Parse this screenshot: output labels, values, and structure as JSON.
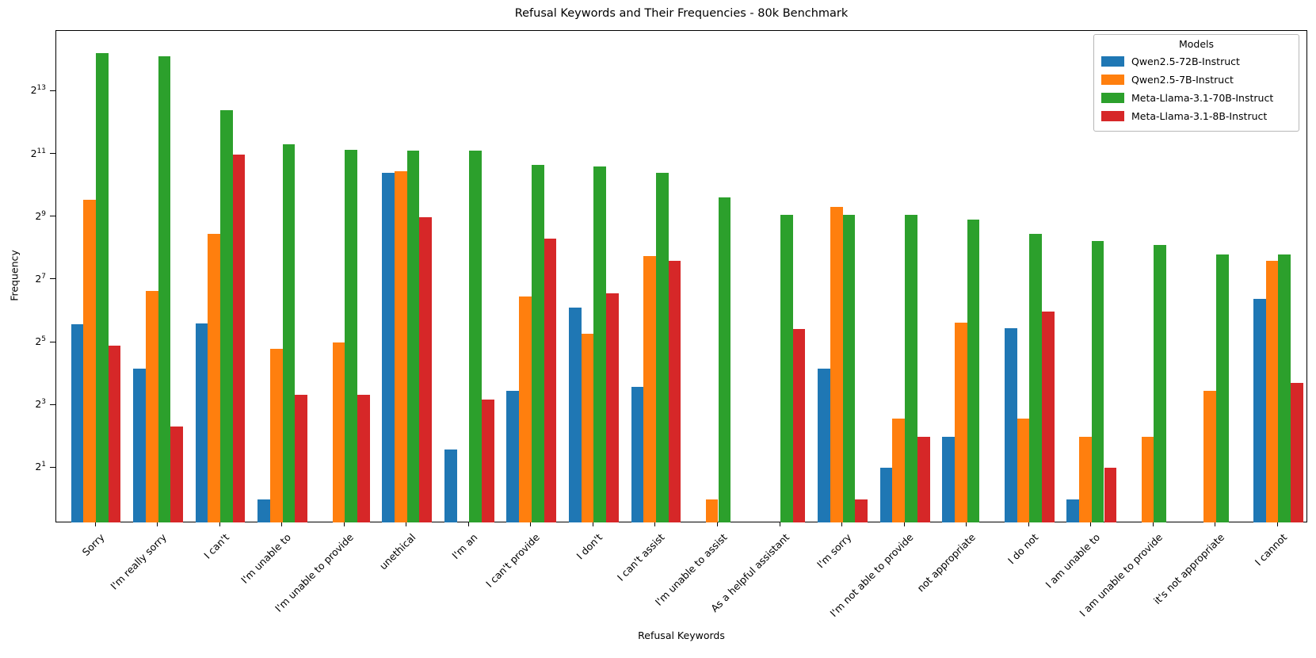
{
  "chart_data": {
    "type": "bar",
    "title": "Refusal Keywords and Their Frequencies - 80k Benchmark",
    "xlabel": "Refusal Keywords",
    "ylabel": "Frequency",
    "yscale": "log2",
    "ytick_powers": [
      1,
      3,
      5,
      7,
      9,
      11,
      13
    ],
    "ytick_labels": [
      "2^1",
      "2^3",
      "2^5",
      "2^7",
      "2^9",
      "2^11",
      "2^13"
    ],
    "ylim": [
      0.585,
      31500
    ],
    "grid": false,
    "legend": {
      "title": "Models",
      "position": "upper right"
    },
    "categories": [
      "Sorry",
      "I'm really sorry",
      "I can't",
      "I'm unable to",
      "I'm unable to provide",
      "unethical",
      "I'm an",
      "I can't provide",
      "I don't",
      "I can't assist",
      "I'm unable to assist",
      "As a helpful assistant",
      "I'm sorry",
      "I'm not able to provide",
      "not appropriate",
      "I do not",
      "I am unable to",
      "I am unable to provide",
      "it's not appropriate",
      "I cannot"
    ],
    "series": [
      {
        "name": "Qwen2.5-72B-Instruct",
        "color": "#1f77b4",
        "values": [
          48,
          18,
          49,
          1,
          0,
          1360,
          3,
          11,
          69,
          12,
          0,
          0,
          18,
          2,
          4,
          44,
          1,
          0,
          0,
          84
        ]
      },
      {
        "name": "Qwen2.5-7B-Instruct",
        "color": "#ff7f0e",
        "values": [
          755,
          100,
          350,
          28,
          32,
          1400,
          0,
          89,
          39,
          214,
          1,
          0,
          635,
          6,
          50,
          6,
          4,
          4,
          11,
          193
        ]
      },
      {
        "name": "Meta-Llama-3.1-70B-Instruct",
        "color": "#2ca02c",
        "values": [
          19000,
          17700,
          5450,
          2570,
          2260,
          2230,
          2215,
          1630,
          1550,
          1360,
          790,
          540,
          540,
          540,
          485,
          350,
          300,
          275,
          225,
          224
        ]
      },
      {
        "name": "Meta-Llama-3.1-8B-Instruct",
        "color": "#d62728",
        "values": [
          30,
          5,
          2048,
          10,
          10,
          512,
          9,
          315,
          95,
          194,
          0,
          43,
          1,
          4,
          0,
          63,
          2,
          0,
          0,
          13
        ]
      }
    ]
  }
}
